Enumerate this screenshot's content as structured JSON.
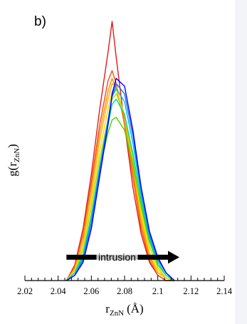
{
  "chart_data": {
    "type": "line",
    "panel_label": "b)",
    "title": "",
    "xlabel": {
      "main": "r",
      "sub": "ZnN",
      "unit": "(Å)"
    },
    "ylabel": {
      "main": "g(r",
      "sub": "ZnN",
      "close": ")"
    },
    "xlim": [
      2.02,
      2.14
    ],
    "ylim": [
      0,
      1
    ],
    "x_ticks": [
      "2.02",
      "2.04",
      "2.06",
      "2.08",
      "2.1",
      "2.12",
      "2.14"
    ],
    "y_ticks_shown": false,
    "grid": false,
    "legend": "none",
    "annotation": {
      "text": "intrusion",
      "arrow_from_x": 2.045,
      "arrow_to_x": 2.113,
      "y": 0.09
    },
    "series": [
      {
        "color": "#e31a1c",
        "x": [
          2.045,
          2.05,
          2.055,
          2.06,
          2.065,
          2.07,
          2.0725,
          2.075,
          2.08,
          2.085,
          2.09,
          2.095,
          2.1,
          2.105,
          2.11
        ],
        "y": [
          0.0,
          0.06,
          0.2,
          0.41,
          0.66,
          0.88,
          1.0,
          0.86,
          0.6,
          0.36,
          0.18,
          0.07,
          0.02,
          0.0,
          0.0
        ]
      },
      {
        "color": "#f04e14",
        "x": [
          2.045,
          2.05,
          2.055,
          2.06,
          2.065,
          2.07,
          2.0725,
          2.075,
          2.08,
          2.085,
          2.09,
          2.095,
          2.1,
          2.105,
          2.11
        ],
        "y": [
          0.0,
          0.05,
          0.18,
          0.38,
          0.6,
          0.77,
          0.81,
          0.76,
          0.6,
          0.4,
          0.2,
          0.08,
          0.02,
          0.0,
          0.0
        ]
      },
      {
        "color": "#fd8d00",
        "x": [
          2.045,
          2.05,
          2.055,
          2.06,
          2.065,
          2.07,
          2.0725,
          2.075,
          2.08,
          2.085,
          2.09,
          2.095,
          2.1,
          2.105,
          2.11
        ],
        "y": [
          0.0,
          0.05,
          0.17,
          0.36,
          0.57,
          0.73,
          0.78,
          0.74,
          0.61,
          0.42,
          0.22,
          0.09,
          0.03,
          0.01,
          0.0
        ]
      },
      {
        "color": "#ffb000",
        "x": [
          2.045,
          2.05,
          2.055,
          2.06,
          2.065,
          2.07,
          2.0725,
          2.075,
          2.08,
          2.085,
          2.09,
          2.095,
          2.1,
          2.105,
          2.11
        ],
        "y": [
          0.0,
          0.04,
          0.15,
          0.33,
          0.54,
          0.7,
          0.76,
          0.75,
          0.63,
          0.44,
          0.24,
          0.1,
          0.03,
          0.01,
          0.0
        ]
      },
      {
        "color": "#ffd800",
        "x": [
          2.045,
          2.05,
          2.055,
          2.06,
          2.065,
          2.07,
          2.0725,
          2.075,
          2.08,
          2.085,
          2.09,
          2.095,
          2.1,
          2.105,
          2.11
        ],
        "y": [
          0.0,
          0.04,
          0.13,
          0.3,
          0.5,
          0.66,
          0.73,
          0.74,
          0.64,
          0.46,
          0.26,
          0.11,
          0.04,
          0.01,
          0.0
        ]
      },
      {
        "color": "#b5e000",
        "x": [
          2.045,
          2.05,
          2.055,
          2.06,
          2.065,
          2.07,
          2.0725,
          2.075,
          2.08,
          2.085,
          2.09,
          2.095,
          2.1,
          2.105,
          2.11
        ],
        "y": [
          0.0,
          0.03,
          0.12,
          0.28,
          0.47,
          0.62,
          0.7,
          0.72,
          0.64,
          0.47,
          0.28,
          0.13,
          0.05,
          0.01,
          0.0
        ]
      },
      {
        "color": "#46d300",
        "x": [
          2.045,
          2.05,
          2.055,
          2.06,
          2.065,
          2.07,
          2.0725,
          2.075,
          2.08,
          2.085,
          2.09,
          2.095,
          2.1,
          2.105,
          2.11
        ],
        "y": [
          0.0,
          0.03,
          0.1,
          0.25,
          0.43,
          0.57,
          0.62,
          0.63,
          0.58,
          0.45,
          0.29,
          0.15,
          0.06,
          0.02,
          0.0
        ]
      },
      {
        "color": "#00d49a",
        "x": [
          2.045,
          2.05,
          2.055,
          2.06,
          2.065,
          2.07,
          2.0725,
          2.075,
          2.08,
          2.085,
          2.09,
          2.095,
          2.1,
          2.105,
          2.11
        ],
        "y": [
          0.0,
          0.03,
          0.1,
          0.25,
          0.44,
          0.6,
          0.68,
          0.7,
          0.64,
          0.49,
          0.31,
          0.16,
          0.07,
          0.02,
          0.0
        ]
      },
      {
        "color": "#00b7e6",
        "x": [
          2.045,
          2.05,
          2.055,
          2.06,
          2.065,
          2.07,
          2.0725,
          2.075,
          2.08,
          2.085,
          2.09,
          2.095,
          2.1,
          2.105,
          2.11
        ],
        "y": [
          0.0,
          0.02,
          0.09,
          0.24,
          0.44,
          0.62,
          0.71,
          0.74,
          0.69,
          0.53,
          0.33,
          0.17,
          0.08,
          0.03,
          0.0
        ]
      },
      {
        "color": "#1f6ee8",
        "x": [
          2.045,
          2.05,
          2.055,
          2.06,
          2.065,
          2.07,
          2.0725,
          2.075,
          2.08,
          2.085,
          2.09,
          2.095,
          2.1,
          2.105,
          2.11
        ],
        "y": [
          0.0,
          0.02,
          0.08,
          0.22,
          0.42,
          0.61,
          0.71,
          0.76,
          0.72,
          0.56,
          0.35,
          0.18,
          0.08,
          0.03,
          0.0
        ]
      },
      {
        "color": "#0000ff",
        "x": [
          2.045,
          2.05,
          2.055,
          2.06,
          2.065,
          2.07,
          2.0725,
          2.075,
          2.08,
          2.085,
          2.09,
          2.095,
          2.1,
          2.105,
          2.11
        ],
        "y": [
          0.0,
          0.02,
          0.07,
          0.2,
          0.4,
          0.6,
          0.72,
          0.78,
          0.75,
          0.58,
          0.36,
          0.19,
          0.09,
          0.03,
          0.0
        ]
      }
    ]
  }
}
